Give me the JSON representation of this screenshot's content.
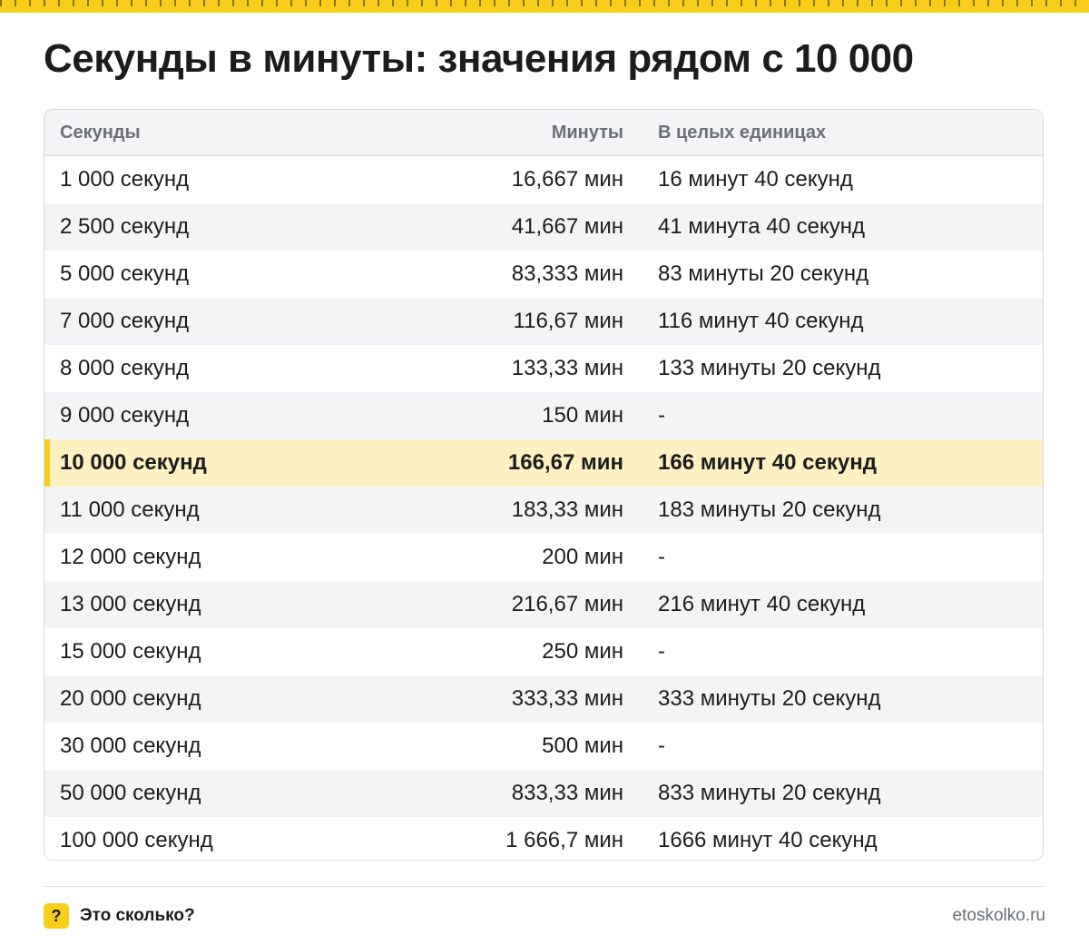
{
  "title": "Секунды в минуты: значения рядом с 10 000",
  "table": {
    "headers": {
      "seconds": "Секунды",
      "minutes": "Минуты",
      "whole": "В целых единицах"
    },
    "highlight_index": 6,
    "rows": [
      {
        "seconds": "1 000 секунд",
        "minutes": "16,667 мин",
        "whole": "16 минут 40 секунд"
      },
      {
        "seconds": "2 500 секунд",
        "minutes": "41,667 мин",
        "whole": "41 минута 40 секунд"
      },
      {
        "seconds": "5 000 секунд",
        "minutes": "83,333 мин",
        "whole": "83 минуты 20 секунд"
      },
      {
        "seconds": "7 000 секунд",
        "minutes": "116,67 мин",
        "whole": "116 минут 40 секунд"
      },
      {
        "seconds": "8 000 секунд",
        "minutes": "133,33 мин",
        "whole": "133 минуты 20 секунд"
      },
      {
        "seconds": "9 000 секунд",
        "minutes": "150 мин",
        "whole": "-"
      },
      {
        "seconds": "10 000 секунд",
        "minutes": "166,67 мин",
        "whole": "166 минут 40 секунд"
      },
      {
        "seconds": "11 000 секунд",
        "minutes": "183,33 мин",
        "whole": "183 минуты 20 секунд"
      },
      {
        "seconds": "12 000 секунд",
        "minutes": "200 мин",
        "whole": "-"
      },
      {
        "seconds": "13 000 секунд",
        "minutes": "216,67 мин",
        "whole": "216 минут 40 секунд"
      },
      {
        "seconds": "15 000 секунд",
        "minutes": "250 мин",
        "whole": "-"
      },
      {
        "seconds": "20 000 секунд",
        "minutes": "333,33 мин",
        "whole": "333 минуты 20 секунд"
      },
      {
        "seconds": "30 000 секунд",
        "minutes": "500 мин",
        "whole": "-"
      },
      {
        "seconds": "50 000 секунд",
        "minutes": "833,33 мин",
        "whole": "833 минуты 20 секунд"
      },
      {
        "seconds": "100 000 секунд",
        "minutes": "1 666,7 мин",
        "whole": "1666 минут 40 секунд"
      }
    ]
  },
  "footer": {
    "icon_glyph": "?",
    "icon": "question-mark-icon",
    "brand": "Это сколько?",
    "site": "etoskolko.ru"
  },
  "colors": {
    "accent": "#f7cf1b",
    "highlight_row": "#fdf1c1",
    "header_bg": "#f4f4f6",
    "muted_text": "#6b6f76"
  }
}
